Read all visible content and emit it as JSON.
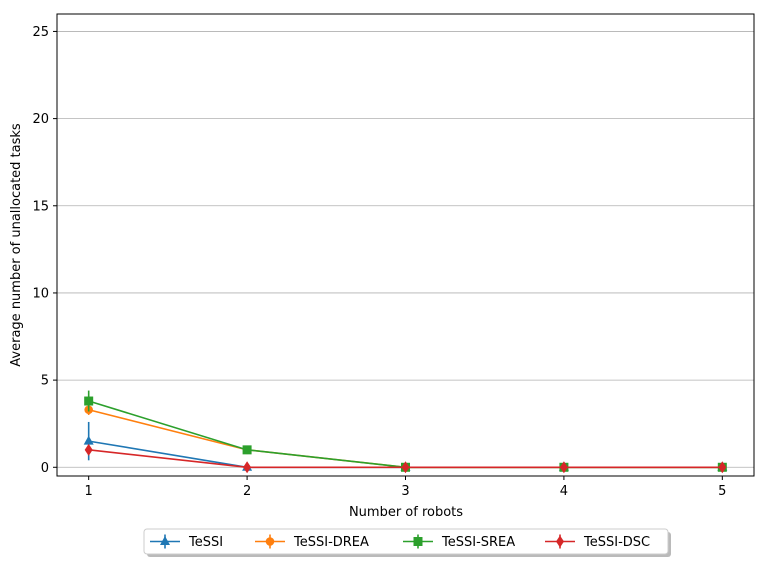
{
  "chart_data": {
    "type": "line",
    "xlabel": "Number of robots",
    "ylabel": "Average number of unallocated tasks",
    "x": [
      1,
      2,
      3,
      4,
      5
    ],
    "xlim": [
      0.8,
      5.2
    ],
    "ylim": [
      -0.5,
      26
    ],
    "yticks": [
      0,
      5,
      10,
      15,
      20,
      25
    ],
    "xticks": [
      1,
      2,
      3,
      4,
      5
    ],
    "grid": "horizontal",
    "legend_position": "bottom-center",
    "series": [
      {
        "name": "TeSSI",
        "color": "#1f77b4",
        "marker": "triangle",
        "values": [
          1.5,
          0,
          0,
          0,
          0
        ],
        "errors": [
          1.1,
          0,
          0,
          0,
          0
        ]
      },
      {
        "name": "TeSSI-DREA",
        "color": "#ff7f0e",
        "marker": "circle",
        "values": [
          3.3,
          1.0,
          0,
          0,
          0
        ],
        "errors": [
          0.3,
          0,
          0,
          0,
          0
        ]
      },
      {
        "name": "TeSSI-SREA",
        "color": "#2ca02c",
        "marker": "square",
        "values": [
          3.8,
          1.0,
          0,
          0,
          0
        ],
        "errors": [
          0.6,
          0,
          0,
          0,
          0
        ]
      },
      {
        "name": "TeSSI-DSC",
        "color": "#d62728",
        "marker": "diamond",
        "values": [
          1.0,
          0,
          0,
          0,
          0
        ],
        "errors": [
          0.2,
          0,
          0,
          0,
          0
        ]
      }
    ]
  }
}
